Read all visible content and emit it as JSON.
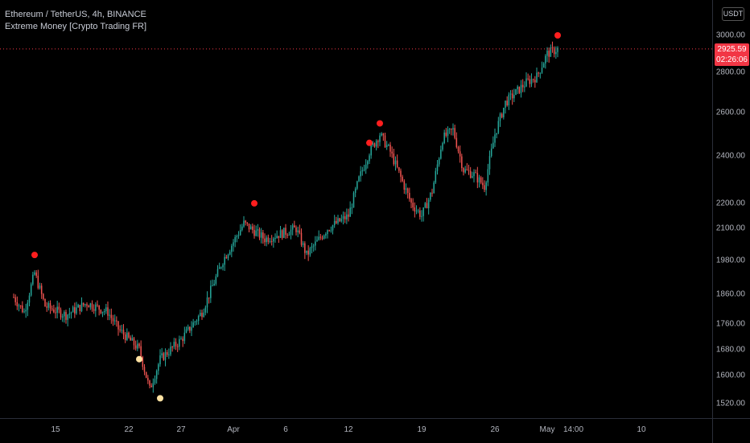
{
  "legend": {
    "symbol": "Ethereum / TetherUS, 4h, BINANCE",
    "indicator": "Extreme Money [Crypto Trading FR]"
  },
  "price_axis": {
    "currency": "USDT",
    "ticks": [
      "3000.00",
      "2800.00",
      "2600.00",
      "2400.00",
      "2200.00",
      "2100.00",
      "1980.00",
      "1860.00",
      "1760.00",
      "1680.00",
      "1600.00",
      "1520.00"
    ],
    "last_price": "2925.59",
    "countdown": "02:26:06"
  },
  "time_axis": {
    "ticks": [
      "15",
      "22",
      "27",
      "Apr",
      "6",
      "12",
      "19",
      "26",
      "May",
      "14:00",
      "10"
    ]
  },
  "colors": {
    "up": "#26a69a",
    "down": "#ef5350",
    "signal_top": "#ff1e1e",
    "signal_bottom": "#ffe3a3",
    "background": "#000000",
    "price_badge": "#f23645"
  },
  "chart_data": {
    "type": "candlestick",
    "symbol": "ETHUSDT",
    "timeframe": "4h",
    "exchange": "BINANCE",
    "y_scale": "log",
    "ylim": [
      1500,
      3080
    ],
    "anchor_path": [
      {
        "x": "Mar 11",
        "price": 1850
      },
      {
        "x": "Mar 12",
        "price": 1800
      },
      {
        "x": "Mar 13",
        "price": 1935
      },
      {
        "x": "Mar 14",
        "price": 1820
      },
      {
        "x": "Mar 16",
        "price": 1790
      },
      {
        "x": "Mar 18",
        "price": 1830
      },
      {
        "x": "Mar 20",
        "price": 1800
      },
      {
        "x": "Mar 21",
        "price": 1745
      },
      {
        "x": "Mar 23",
        "price": 1680
      },
      {
        "x": "Mar 24",
        "price": 1560
      },
      {
        "x": "Mar 25",
        "price": 1650
      },
      {
        "x": "Mar 27",
        "price": 1710
      },
      {
        "x": "Mar 29",
        "price": 1800
      },
      {
        "x": "Mar 31",
        "price": 1980
      },
      {
        "x": "Apr 2",
        "price": 2120
      },
      {
        "x": "Apr 4",
        "price": 2060
      },
      {
        "x": "Apr 7",
        "price": 2100
      },
      {
        "x": "Apr 8",
        "price": 2000
      },
      {
        "x": "Apr 10",
        "price": 2100
      },
      {
        "x": "Apr 12",
        "price": 2150
      },
      {
        "x": "Apr 13",
        "price": 2300
      },
      {
        "x": "Apr 14",
        "price": 2420
      },
      {
        "x": "Apr 15",
        "price": 2500
      },
      {
        "x": "Apr 16",
        "price": 2420
      },
      {
        "x": "Apr 18",
        "price": 2200
      },
      {
        "x": "Apr 19",
        "price": 2150
      },
      {
        "x": "Apr 20",
        "price": 2250
      },
      {
        "x": "Apr 21",
        "price": 2480
      },
      {
        "x": "Apr 22",
        "price": 2520
      },
      {
        "x": "Apr 23",
        "price": 2340
      },
      {
        "x": "Apr 24",
        "price": 2320
      },
      {
        "x": "Apr 25",
        "price": 2270
      },
      {
        "x": "Apr 26",
        "price": 2500
      },
      {
        "x": "Apr 27",
        "price": 2650
      },
      {
        "x": "Apr 29",
        "price": 2750
      },
      {
        "x": "Apr 30",
        "price": 2780
      },
      {
        "x": "May 1",
        "price": 2900
      },
      {
        "x": "May 2",
        "price": 2925.59
      }
    ],
    "signals": [
      {
        "type": "top",
        "x": "Mar 13",
        "price": 2000
      },
      {
        "type": "bottom",
        "x": "Mar 23",
        "price": 1650
      },
      {
        "type": "bottom",
        "x": "Mar 25",
        "price": 1535
      },
      {
        "type": "top",
        "x": "Apr 3",
        "price": 2200
      },
      {
        "type": "top",
        "x": "Apr 14",
        "price": 2460
      },
      {
        "type": "top",
        "x": "Apr 15",
        "price": 2550
      },
      {
        "type": "top",
        "x": "May 2",
        "price": 3000
      }
    ]
  }
}
